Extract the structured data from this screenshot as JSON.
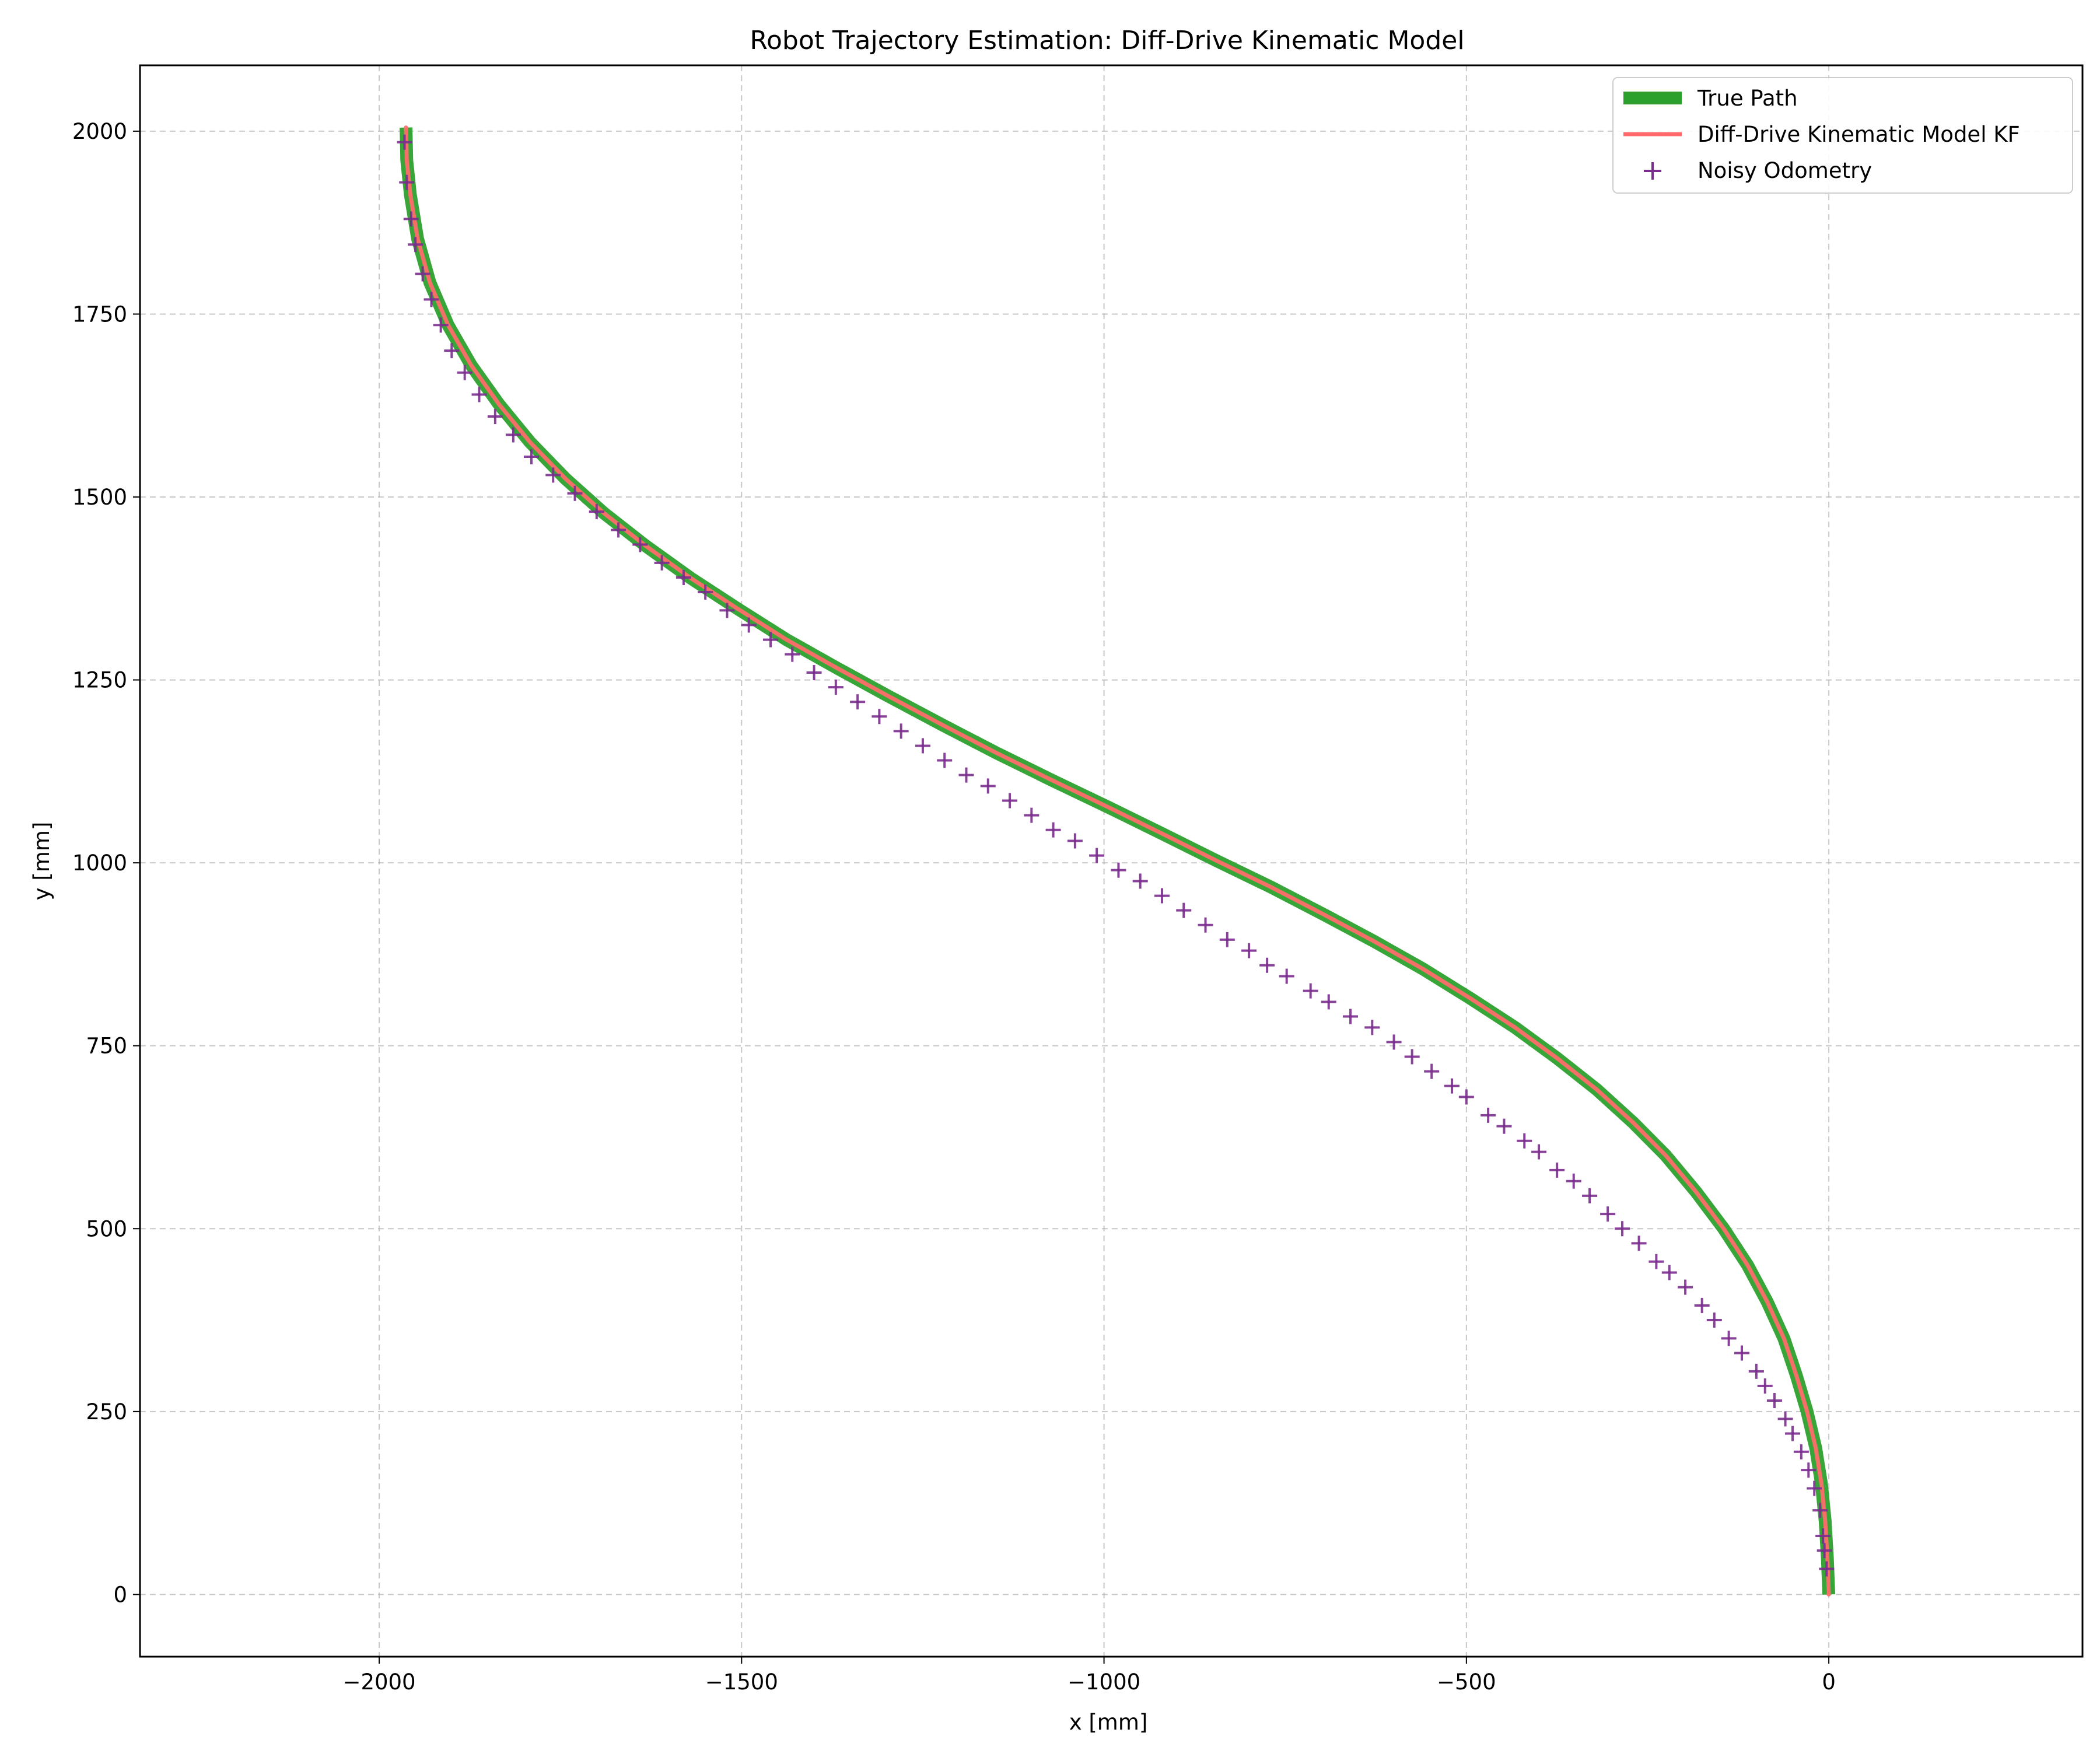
{
  "chart_data": {
    "type": "line",
    "title": "Robot Trajectory Estimation: Diff-Drive Kinematic Model",
    "xlabel": "x [mm]",
    "ylabel": "y [mm]",
    "xlim": [
      -2330,
      350
    ],
    "ylim": [
      -85,
      2090
    ],
    "xticks": [
      -2000,
      -1500,
      -1000,
      -500,
      0
    ],
    "yticks": [
      0,
      250,
      500,
      750,
      1000,
      1250,
      1500,
      1750,
      2000
    ],
    "xtick_labels": [
      "−2000",
      "−1500",
      "−1000",
      "−500",
      "0"
    ],
    "ytick_labels": [
      "0",
      "250",
      "500",
      "750",
      "1000",
      "1250",
      "1500",
      "1750",
      "2000"
    ],
    "grid": true,
    "legend_position": "top-right",
    "series": [
      {
        "name": "True Path",
        "kind": "line",
        "color": "#2ca02c",
        "x": [
          0,
          -2,
          -5,
          -10,
          -18,
          -30,
          -45,
          -62,
          -85,
          -112,
          -145,
          -183,
          -225,
          -270,
          -320,
          -375,
          -433,
          -495,
          -560,
          -628,
          -698,
          -770,
          -845,
          -920,
          -996,
          -1072,
          -1148,
          -1222,
          -1296,
          -1368,
          -1438,
          -1505,
          -1570,
          -1632,
          -1690,
          -1743,
          -1792,
          -1835,
          -1873,
          -1905,
          -1930,
          -1947,
          -1957,
          -1962,
          -1963
        ],
        "y": [
          0,
          50,
          100,
          150,
          200,
          250,
          300,
          350,
          400,
          450,
          500,
          550,
          600,
          645,
          690,
          733,
          775,
          815,
          855,
          893,
          930,
          967,
          1003,
          1040,
          1077,
          1113,
          1150,
          1188,
          1227,
          1266,
          1305,
          1347,
          1389,
          1433,
          1478,
          1525,
          1575,
          1627,
          1680,
          1735,
          1793,
          1853,
          1913,
          1960,
          2005
        ]
      },
      {
        "name": "Diff-Drive Kinematic Model KF",
        "kind": "line",
        "color": "#ff6b6b",
        "x": [
          0,
          -2,
          -5,
          -10,
          -18,
          -30,
          -45,
          -62,
          -85,
          -112,
          -145,
          -183,
          -225,
          -270,
          -320,
          -375,
          -433,
          -495,
          -560,
          -628,
          -698,
          -770,
          -845,
          -920,
          -996,
          -1072,
          -1148,
          -1222,
          -1296,
          -1368,
          -1438,
          -1505,
          -1570,
          -1632,
          -1690,
          -1743,
          -1792,
          -1835,
          -1873,
          -1905,
          -1930,
          -1947,
          -1957,
          -1962,
          -1963
        ],
        "y": [
          0,
          50,
          100,
          150,
          200,
          250,
          300,
          350,
          400,
          450,
          500,
          550,
          600,
          645,
          690,
          733,
          775,
          815,
          855,
          893,
          930,
          967,
          1003,
          1040,
          1077,
          1113,
          1150,
          1188,
          1227,
          1266,
          1305,
          1347,
          1389,
          1433,
          1478,
          1525,
          1575,
          1627,
          1680,
          1735,
          1793,
          1853,
          1913,
          1960,
          2005
        ]
      },
      {
        "name": "Noisy Odometry",
        "kind": "scatter",
        "marker": "+",
        "color": "#7b2d8e",
        "x": [
          -3,
          -6,
          -8,
          -12,
          -20,
          -28,
          -38,
          -50,
          -60,
          -75,
          -88,
          -100,
          -120,
          -138,
          -158,
          -175,
          -198,
          -220,
          -238,
          -262,
          -285,
          -305,
          -330,
          -352,
          -375,
          -400,
          -420,
          -448,
          -470,
          -500,
          -520,
          -548,
          -575,
          -600,
          -630,
          -660,
          -690,
          -715,
          -748,
          -775,
          -800,
          -830,
          -860,
          -890,
          -920,
          -950,
          -980,
          -1010,
          -1040,
          -1070,
          -1100,
          -1130,
          -1160,
          -1190,
          -1220,
          -1250,
          -1280,
          -1310,
          -1340,
          -1370,
          -1400,
          -1430,
          -1460,
          -1490,
          -1520,
          -1550,
          -1580,
          -1610,
          -1640,
          -1670,
          -1700,
          -1730,
          -1760,
          -1790,
          -1815,
          -1840,
          -1862,
          -1882,
          -1900,
          -1915,
          -1928,
          -1940,
          -1950,
          -1956,
          -1962,
          -1965
        ],
        "y": [
          35,
          60,
          80,
          115,
          145,
          170,
          195,
          220,
          240,
          265,
          285,
          305,
          330,
          350,
          375,
          395,
          420,
          440,
          455,
          480,
          500,
          520,
          545,
          565,
          580,
          605,
          620,
          640,
          655,
          680,
          695,
          715,
          735,
          755,
          775,
          790,
          810,
          825,
          845,
          860,
          880,
          895,
          915,
          935,
          955,
          975,
          990,
          1010,
          1030,
          1045,
          1065,
          1085,
          1105,
          1120,
          1140,
          1160,
          1180,
          1200,
          1220,
          1240,
          1260,
          1285,
          1305,
          1325,
          1345,
          1370,
          1390,
          1410,
          1435,
          1455,
          1480,
          1505,
          1530,
          1555,
          1585,
          1610,
          1640,
          1670,
          1700,
          1735,
          1770,
          1805,
          1845,
          1880,
          1930,
          1985
        ]
      }
    ]
  }
}
